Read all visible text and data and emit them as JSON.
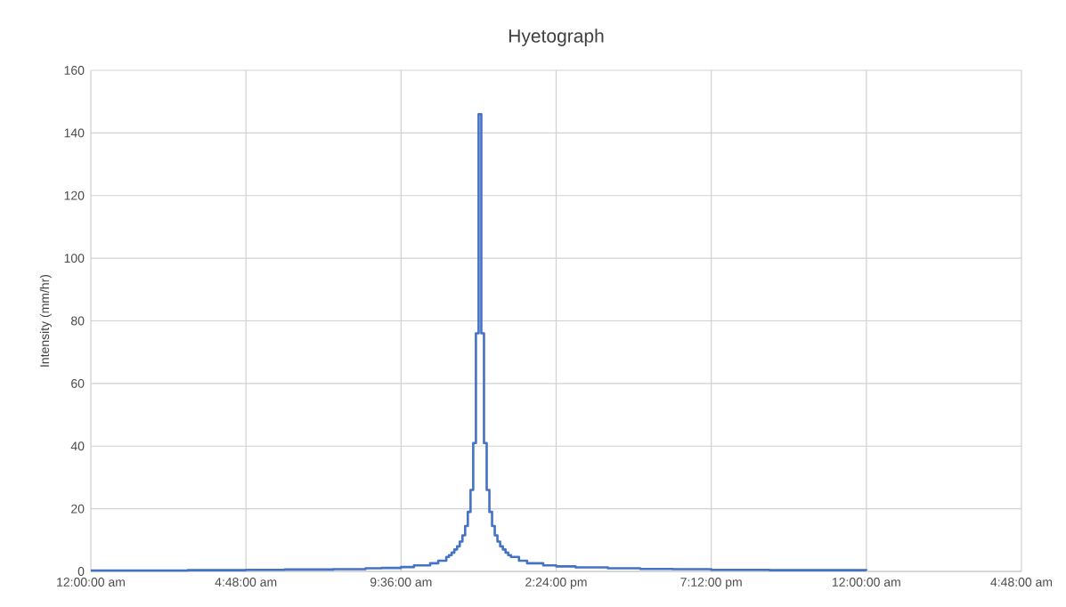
{
  "chart_data": {
    "type": "step",
    "title": "Hyetograph",
    "ylabel": "Intensity (mm/hr)",
    "x": [
      "2000-01-01T00:00",
      "2000-01-01T01:30",
      "2000-01-01T03:00",
      "2000-01-01T04:48",
      "2000-01-01T06:00",
      "2000-01-01T07:30",
      "2000-01-01T08:30",
      "2000-01-01T09:00",
      "2000-01-01T09:36",
      "2000-01-01T10:00",
      "2000-01-01T10:30",
      "2000-01-01T10:45",
      "2000-01-01T11:00",
      "2000-01-01T11:05",
      "2000-01-01T11:10",
      "2000-01-01T11:15",
      "2000-01-01T11:20",
      "2000-01-01T11:25",
      "2000-01-01T11:30",
      "2000-01-01T11:35",
      "2000-01-01T11:40",
      "2000-01-01T11:45",
      "2000-01-01T11:50",
      "2000-01-01T11:55",
      "2000-01-01T12:00",
      "2000-01-01T12:05",
      "2000-01-01T12:10",
      "2000-01-01T12:15",
      "2000-01-01T12:20",
      "2000-01-01T12:25",
      "2000-01-01T12:30",
      "2000-01-01T12:35",
      "2000-01-01T12:40",
      "2000-01-01T12:45",
      "2000-01-01T12:50",
      "2000-01-01T12:55",
      "2000-01-01T13:00",
      "2000-01-01T13:15",
      "2000-01-01T13:30",
      "2000-01-01T14:00",
      "2000-01-01T14:24",
      "2000-01-01T15:00",
      "2000-01-01T16:00",
      "2000-01-01T17:00",
      "2000-01-01T18:00",
      "2000-01-01T19:12",
      "2000-01-01T21:00",
      "2000-01-01T22:30",
      "2000-01-02T00:00"
    ],
    "series": [
      {
        "color": "#4472c4",
        "values": [
          0.3,
          0.3,
          0.4,
          0.5,
          0.6,
          0.7,
          1.0,
          1.1,
          1.4,
          1.9,
          2.6,
          3.4,
          4.6,
          5.2,
          6,
          7,
          8,
          9.5,
          11.5,
          14.5,
          19,
          26,
          41,
          76,
          146,
          76,
          41,
          26,
          19,
          14.5,
          11.5,
          9.5,
          8,
          7,
          6,
          5.2,
          4.6,
          3.4,
          2.6,
          1.9,
          1.6,
          1.3,
          1.0,
          0.8,
          0.7,
          0.5,
          0.4,
          0.4,
          0.3
        ]
      }
    ],
    "xlim": [
      "2000-01-01T00:00",
      "2000-01-02T04:48"
    ],
    "xticks": [
      {
        "value": "2000-01-01T00:00",
        "label": "12:00:00 am"
      },
      {
        "value": "2000-01-01T04:48",
        "label": "4:48:00 am"
      },
      {
        "value": "2000-01-01T09:36",
        "label": "9:36:00 am"
      },
      {
        "value": "2000-01-01T14:24",
        "label": "2:24:00 pm"
      },
      {
        "value": "2000-01-01T19:12",
        "label": "7:12:00 pm"
      },
      {
        "value": "2000-01-02T00:00",
        "label": "12:00:00 am"
      },
      {
        "value": "2000-01-02T04:48",
        "label": "4:48:00 am"
      }
    ],
    "ylim": [
      0,
      160
    ],
    "yticks": [
      0,
      20,
      40,
      60,
      80,
      100,
      120,
      140,
      160
    ],
    "grid": true,
    "marker": "none",
    "line_style": "solid"
  }
}
